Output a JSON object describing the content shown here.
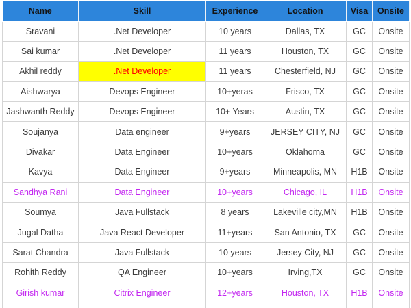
{
  "table": {
    "columns": [
      "Name",
      "Skill",
      "Experience",
      "Location",
      "Visa",
      "Onsite"
    ],
    "rows": [
      {
        "name": "Sravani",
        "skill": ".Net Developer",
        "experience": "10 years",
        "location": "Dallas, TX",
        "visa": "GC",
        "onsite": "Onsite",
        "row_color": null,
        "skill_highlighted": false
      },
      {
        "name": "Sai kumar",
        "skill": ".Net Developer",
        "experience": "11 years",
        "location": "Houston, TX",
        "visa": "GC",
        "onsite": "Onsite",
        "row_color": null,
        "skill_highlighted": false
      },
      {
        "name": "Akhil reddy",
        "skill": ".Net Developer",
        "experience": "11 years",
        "location": "Chesterfield, NJ",
        "visa": "GC",
        "onsite": "Onsite",
        "row_color": null,
        "skill_highlighted": true
      },
      {
        "name": "Aishwarya",
        "skill": "Devops Engineer",
        "experience": "10+yeras",
        "location": "Frisco, TX",
        "visa": "GC",
        "onsite": "Onsite",
        "row_color": null,
        "skill_highlighted": false
      },
      {
        "name": "Jashwanth Reddy",
        "skill": "Devops Engineer",
        "experience": "10+ Years",
        "location": "Austin, TX",
        "visa": "GC",
        "onsite": "Onsite",
        "row_color": null,
        "skill_highlighted": false
      },
      {
        "name": "Soujanya",
        "skill": "Data engineer",
        "experience": "9+years",
        "location": "JERSEY CITY, NJ",
        "visa": "GC",
        "onsite": "Onsite",
        "row_color": null,
        "skill_highlighted": false
      },
      {
        "name": "Divakar",
        "skill": "Data Engineer",
        "experience": "10+years",
        "location": "Oklahoma",
        "visa": "GC",
        "onsite": "Onsite",
        "row_color": null,
        "skill_highlighted": false
      },
      {
        "name": "Kavya",
        "skill": "Data Engineer",
        "experience": "9+years",
        "location": "Minneapolis, MN",
        "visa": "H1B",
        "onsite": "Onsite",
        "row_color": null,
        "skill_highlighted": false
      },
      {
        "name": "Sandhya Rani",
        "skill": "Data Engineer",
        "experience": "10+years",
        "location": "Chicago, IL",
        "visa": "H1B",
        "onsite": "Onsite",
        "row_color": "magenta",
        "skill_highlighted": false
      },
      {
        "name": "Soumya",
        "skill": "Java Fullstack",
        "experience": "8 years",
        "location": "Lakeville city,MN",
        "visa": "H1B",
        "onsite": "Onsite",
        "row_color": null,
        "skill_highlighted": false
      },
      {
        "name": "Jugal Datha",
        "skill": "Java React Developer",
        "experience": "11+years",
        "location": "San Antonio, TX",
        "visa": "GC",
        "onsite": "Onsite",
        "row_color": null,
        "skill_highlighted": false
      },
      {
        "name": "Sarat Chandra",
        "skill": "Java Fullstack",
        "experience": "10 years",
        "location": "Jersey City, NJ",
        "visa": "GC",
        "onsite": "Onsite",
        "row_color": null,
        "skill_highlighted": false
      },
      {
        "name": "Rohith Reddy",
        "skill": "QA Engineer",
        "experience": "10+years",
        "location": "Irving,TX",
        "visa": "GC",
        "onsite": "Onsite",
        "row_color": null,
        "skill_highlighted": false
      },
      {
        "name": "Girish kumar",
        "skill": "Citrix Engineer",
        "experience": "12+years",
        "location": "Houston, TX",
        "visa": "H1B",
        "onsite": "Onsite",
        "row_color": "magenta",
        "skill_highlighted": false
      }
    ],
    "has_trailing_empty_row": true
  },
  "colors": {
    "header_bg": "#2D85DB",
    "header_text": "#141414",
    "body_text": "#3C3C3C",
    "grid": "#D5D5D5",
    "magenta": "#C327F0",
    "highlight_bg": "#FFFF00",
    "highlight_text": "#FF0000"
  }
}
